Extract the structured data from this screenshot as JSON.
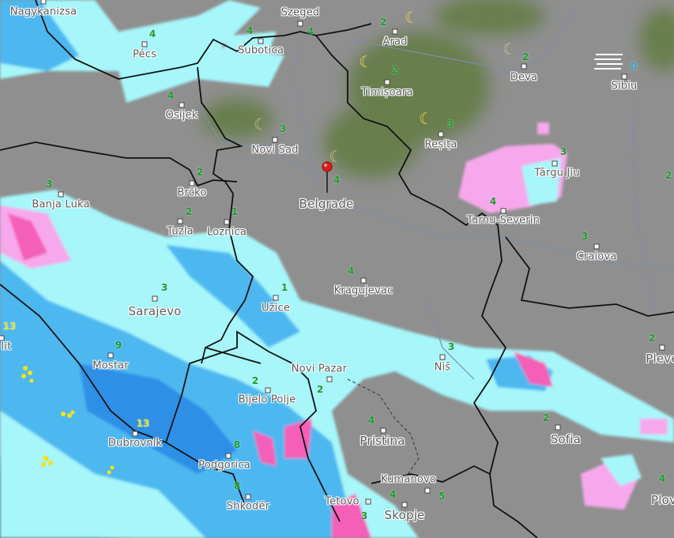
{
  "map": {
    "selected_location": "Belgrade",
    "colors": {
      "background": "#8e8e8e",
      "forest": "#5f7a3e",
      "light_precip": "#a6f6fa",
      "moderate_precip": "#4db8f0",
      "heavy_precip": "#2f8fe6",
      "sleet": "#f7a8ec",
      "heavy_sleet": "#f45fb8",
      "border": "#111111",
      "river": "#7d8ea8",
      "value_green": "#1f9a2d",
      "value_yellow": "#e8df3a",
      "value_blue": "#2aa3d6",
      "moon": "#e9d34a",
      "lightning": "#f5e11e"
    },
    "cities": [
      {
        "name": "Nagykanizsa"
      },
      {
        "name": "Szeged"
      },
      {
        "name": "Pécs"
      },
      {
        "name": "Subotica"
      },
      {
        "name": "Arad"
      },
      {
        "name": "Deva"
      },
      {
        "name": "Sibiu"
      },
      {
        "name": "Timișoara"
      },
      {
        "name": "Osijek"
      },
      {
        "name": "Novi Sad"
      },
      {
        "name": "Reșița"
      },
      {
        "name": "Târgu Jiu"
      },
      {
        "name": "Brčko"
      },
      {
        "name": "Belgrade"
      },
      {
        "name": "Banja Luka"
      },
      {
        "name": "Turnu-Severin"
      },
      {
        "name": "Tuzla"
      },
      {
        "name": "Loznica"
      },
      {
        "name": "Craiova"
      },
      {
        "name": "Sarajevo"
      },
      {
        "name": "Užice"
      },
      {
        "name": "Kragujevac"
      },
      {
        "name": "Mostar"
      },
      {
        "name": "Novi Pazar"
      },
      {
        "name": "Niš"
      },
      {
        "name": "Pleve"
      },
      {
        "name": "Bijelo Polje"
      },
      {
        "name": "Dubrovnik"
      },
      {
        "name": "Pristina"
      },
      {
        "name": "Sofia"
      },
      {
        "name": "Podgorica"
      },
      {
        "name": "Kumanovo"
      },
      {
        "name": "Shkodër"
      },
      {
        "name": "Tetovo"
      },
      {
        "name": "Skopje"
      },
      {
        "name": "Plov"
      },
      {
        "name": "lit"
      }
    ],
    "values": [
      {
        "v": "4",
        "c": "green"
      },
      {
        "v": "4",
        "c": "green"
      },
      {
        "v": "4",
        "c": "green"
      },
      {
        "v": "2",
        "c": "green"
      },
      {
        "v": "2",
        "c": "green"
      },
      {
        "v": "0",
        "c": "blue"
      },
      {
        "v": "2",
        "c": "green"
      },
      {
        "v": "4",
        "c": "green"
      },
      {
        "v": "3",
        "c": "green"
      },
      {
        "v": "3",
        "c": "green"
      },
      {
        "v": "3",
        "c": "green"
      },
      {
        "v": "2",
        "c": "green"
      },
      {
        "v": "4",
        "c": "green"
      },
      {
        "v": "3",
        "c": "green"
      },
      {
        "v": "2",
        "c": "green"
      },
      {
        "v": "1",
        "c": "green"
      },
      {
        "v": "4",
        "c": "green"
      },
      {
        "v": "3",
        "c": "green"
      },
      {
        "v": "2",
        "c": "green"
      },
      {
        "v": "1",
        "c": "green"
      },
      {
        "v": "3",
        "c": "green"
      },
      {
        "v": "4",
        "c": "green"
      },
      {
        "v": "13",
        "c": "yellow"
      },
      {
        "v": "9",
        "c": "green"
      },
      {
        "v": "3",
        "c": "green"
      },
      {
        "v": "2",
        "c": "green"
      },
      {
        "v": "2",
        "c": "green"
      },
      {
        "v": "2",
        "c": "green"
      },
      {
        "v": "13",
        "c": "yellow"
      },
      {
        "v": "4",
        "c": "green"
      },
      {
        "v": "2",
        "c": "green"
      },
      {
        "v": "8",
        "c": "green"
      },
      {
        "v": "8",
        "c": "green"
      },
      {
        "v": "5",
        "c": "green"
      },
      {
        "v": "4",
        "c": "green"
      },
      {
        "v": "4",
        "c": "green"
      },
      {
        "v": "3",
        "c": "green"
      }
    ],
    "icons": [
      "moon-icon",
      "fog-icon",
      "location-pin-icon",
      "lightning-icon"
    ]
  }
}
